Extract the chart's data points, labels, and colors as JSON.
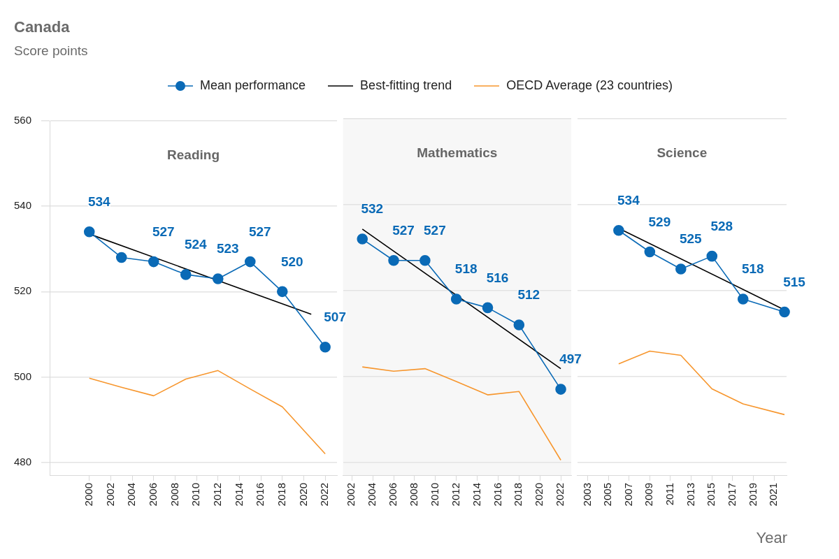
{
  "chart_data": [
    {
      "type": "line",
      "title": "Canada",
      "subtitle": "Score points",
      "annotations": [
        "Reading"
      ],
      "legend": "top",
      "grid": "y",
      "tick_labels": "xy",
      "xlim": [
        1996.3,
        2023.1
      ],
      "xticks": [
        2000,
        2002,
        2004,
        2006,
        2008,
        2010,
        2012,
        2014,
        2016,
        2018,
        2020,
        2022
      ],
      "ylim": [
        477,
        560
      ],
      "yticks": [
        480,
        500,
        520,
        540,
        560
      ],
      "series": [
        {
          "name": "Mean performance",
          "color": "#0a6ab6",
          "marker": "circle",
          "x": [
            2000,
            2003,
            2006,
            2009,
            2012,
            2015,
            2018,
            2022
          ],
          "values": [
            534,
            528,
            527,
            524,
            523,
            527,
            520,
            507
          ],
          "value_labels": [
            "534",
            null,
            "527",
            "524",
            "523",
            "527",
            "520",
            "507"
          ]
        },
        {
          "name": "Best-fitting trend",
          "color": "#000000",
          "marker": "none",
          "x": [
            2000,
            2020.7
          ],
          "values": [
            533.5,
            514.7
          ]
        },
        {
          "name": "OECD Average (23 countries)",
          "color": "#f7962d",
          "marker": "none",
          "x": [
            2000,
            2003,
            2006,
            2009,
            2012,
            2015,
            2018,
            2022
          ],
          "values": [
            499.7,
            497.6,
            495.6,
            499.5,
            501.5,
            497.2,
            493,
            482
          ]
        }
      ]
    },
    {
      "type": "line",
      "annotations": [
        "Mathematics"
      ],
      "grid": "y",
      "tick_labels": "x",
      "xlim": [
        2001.15,
        2023
      ],
      "xticks": [
        2002,
        2004,
        2006,
        2008,
        2010,
        2012,
        2014,
        2016,
        2018,
        2020,
        2022
      ],
      "ylim": [
        477,
        560
      ],
      "yticks": [
        480,
        500,
        520,
        540,
        560
      ],
      "series": [
        {
          "color": "#0a6ab6",
          "marker": "circle",
          "x": [
            2003,
            2006,
            2009,
            2012,
            2015,
            2018,
            2022
          ],
          "values": [
            532,
            527,
            527,
            518,
            516,
            512,
            497
          ],
          "value_labels": [
            "532",
            "527",
            "527",
            "518",
            "516",
            "512",
            "497"
          ]
        },
        {
          "color": "#000000",
          "marker": "none",
          "x": [
            2003,
            2022
          ],
          "values": [
            534.3,
            501.8
          ]
        },
        {
          "color": "#f7962d",
          "marker": "none",
          "x": [
            2003,
            2006,
            2009,
            2012,
            2015,
            2018,
            2022
          ],
          "values": [
            502.2,
            501.2,
            501.8,
            498.8,
            495.7,
            496.5,
            480.5
          ]
        }
      ]
    },
    {
      "type": "line",
      "annotations": [
        "Science"
      ],
      "xlabel": "Year",
      "grid": "y",
      "tick_labels": "x",
      "xlim": [
        2002,
        2022.2
      ],
      "xticks": [
        2003,
        2005,
        2007,
        2009,
        2011,
        2013,
        2015,
        2017,
        2019,
        2021
      ],
      "ylim": [
        477,
        560
      ],
      "yticks": [
        480,
        500,
        520,
        540,
        560
      ],
      "series": [
        {
          "color": "#0a6ab6",
          "marker": "circle",
          "x": [
            2006,
            2009,
            2012,
            2015,
            2018,
            2022
          ],
          "values": [
            534,
            529,
            525,
            528,
            518,
            515
          ],
          "value_labels": [
            "534",
            "529",
            "525",
            "528",
            "518",
            "515"
          ]
        },
        {
          "color": "#000000",
          "marker": "none",
          "x": [
            2006,
            2022
          ],
          "values": [
            534.5,
            515.5
          ]
        },
        {
          "color": "#f7962d",
          "marker": "none",
          "x": [
            2006,
            2009,
            2012,
            2015,
            2018,
            2022
          ],
          "values": [
            502.9,
            505.9,
            504.9,
            497.1,
            493.6,
            491.1
          ]
        }
      ]
    }
  ]
}
